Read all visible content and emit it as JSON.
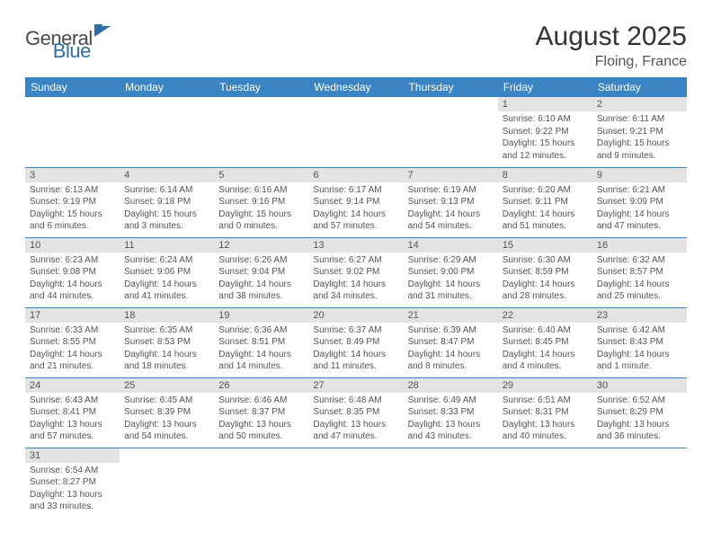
{
  "brand": {
    "part1": "General",
    "part2": "Blue"
  },
  "title": "August 2025",
  "location": "Floing, France",
  "colors": {
    "header_bg": "#3b84c4",
    "header_text": "#ffffff",
    "daynum_bg": "#e3e3e3",
    "body_text": "#555555",
    "row_divider": "#3b84c4",
    "brand_blue": "#2f6fa8",
    "brand_gray": "#4a4a4a"
  },
  "weekdays": [
    "Sunday",
    "Monday",
    "Tuesday",
    "Wednesday",
    "Thursday",
    "Friday",
    "Saturday"
  ],
  "weeks": [
    [
      null,
      null,
      null,
      null,
      null,
      {
        "n": "1",
        "sr": "Sunrise: 6:10 AM",
        "ss": "Sunset: 9:22 PM",
        "d1": "Daylight: 15 hours",
        "d2": "and 12 minutes."
      },
      {
        "n": "2",
        "sr": "Sunrise: 6:11 AM",
        "ss": "Sunset: 9:21 PM",
        "d1": "Daylight: 15 hours",
        "d2": "and 9 minutes."
      }
    ],
    [
      {
        "n": "3",
        "sr": "Sunrise: 6:13 AM",
        "ss": "Sunset: 9:19 PM",
        "d1": "Daylight: 15 hours",
        "d2": "and 6 minutes."
      },
      {
        "n": "4",
        "sr": "Sunrise: 6:14 AM",
        "ss": "Sunset: 9:18 PM",
        "d1": "Daylight: 15 hours",
        "d2": "and 3 minutes."
      },
      {
        "n": "5",
        "sr": "Sunrise: 6:16 AM",
        "ss": "Sunset: 9:16 PM",
        "d1": "Daylight: 15 hours",
        "d2": "and 0 minutes."
      },
      {
        "n": "6",
        "sr": "Sunrise: 6:17 AM",
        "ss": "Sunset: 9:14 PM",
        "d1": "Daylight: 14 hours",
        "d2": "and 57 minutes."
      },
      {
        "n": "7",
        "sr": "Sunrise: 6:19 AM",
        "ss": "Sunset: 9:13 PM",
        "d1": "Daylight: 14 hours",
        "d2": "and 54 minutes."
      },
      {
        "n": "8",
        "sr": "Sunrise: 6:20 AM",
        "ss": "Sunset: 9:11 PM",
        "d1": "Daylight: 14 hours",
        "d2": "and 51 minutes."
      },
      {
        "n": "9",
        "sr": "Sunrise: 6:21 AM",
        "ss": "Sunset: 9:09 PM",
        "d1": "Daylight: 14 hours",
        "d2": "and 47 minutes."
      }
    ],
    [
      {
        "n": "10",
        "sr": "Sunrise: 6:23 AM",
        "ss": "Sunset: 9:08 PM",
        "d1": "Daylight: 14 hours",
        "d2": "and 44 minutes."
      },
      {
        "n": "11",
        "sr": "Sunrise: 6:24 AM",
        "ss": "Sunset: 9:06 PM",
        "d1": "Daylight: 14 hours",
        "d2": "and 41 minutes."
      },
      {
        "n": "12",
        "sr": "Sunrise: 6:26 AM",
        "ss": "Sunset: 9:04 PM",
        "d1": "Daylight: 14 hours",
        "d2": "and 38 minutes."
      },
      {
        "n": "13",
        "sr": "Sunrise: 6:27 AM",
        "ss": "Sunset: 9:02 PM",
        "d1": "Daylight: 14 hours",
        "d2": "and 34 minutes."
      },
      {
        "n": "14",
        "sr": "Sunrise: 6:29 AM",
        "ss": "Sunset: 9:00 PM",
        "d1": "Daylight: 14 hours",
        "d2": "and 31 minutes."
      },
      {
        "n": "15",
        "sr": "Sunrise: 6:30 AM",
        "ss": "Sunset: 8:59 PM",
        "d1": "Daylight: 14 hours",
        "d2": "and 28 minutes."
      },
      {
        "n": "16",
        "sr": "Sunrise: 6:32 AM",
        "ss": "Sunset: 8:57 PM",
        "d1": "Daylight: 14 hours",
        "d2": "and 25 minutes."
      }
    ],
    [
      {
        "n": "17",
        "sr": "Sunrise: 6:33 AM",
        "ss": "Sunset: 8:55 PM",
        "d1": "Daylight: 14 hours",
        "d2": "and 21 minutes."
      },
      {
        "n": "18",
        "sr": "Sunrise: 6:35 AM",
        "ss": "Sunset: 8:53 PM",
        "d1": "Daylight: 14 hours",
        "d2": "and 18 minutes."
      },
      {
        "n": "19",
        "sr": "Sunrise: 6:36 AM",
        "ss": "Sunset: 8:51 PM",
        "d1": "Daylight: 14 hours",
        "d2": "and 14 minutes."
      },
      {
        "n": "20",
        "sr": "Sunrise: 6:37 AM",
        "ss": "Sunset: 8:49 PM",
        "d1": "Daylight: 14 hours",
        "d2": "and 11 minutes."
      },
      {
        "n": "21",
        "sr": "Sunrise: 6:39 AM",
        "ss": "Sunset: 8:47 PM",
        "d1": "Daylight: 14 hours",
        "d2": "and 8 minutes."
      },
      {
        "n": "22",
        "sr": "Sunrise: 6:40 AM",
        "ss": "Sunset: 8:45 PM",
        "d1": "Daylight: 14 hours",
        "d2": "and 4 minutes."
      },
      {
        "n": "23",
        "sr": "Sunrise: 6:42 AM",
        "ss": "Sunset: 8:43 PM",
        "d1": "Daylight: 14 hours",
        "d2": "and 1 minute."
      }
    ],
    [
      {
        "n": "24",
        "sr": "Sunrise: 6:43 AM",
        "ss": "Sunset: 8:41 PM",
        "d1": "Daylight: 13 hours",
        "d2": "and 57 minutes."
      },
      {
        "n": "25",
        "sr": "Sunrise: 6:45 AM",
        "ss": "Sunset: 8:39 PM",
        "d1": "Daylight: 13 hours",
        "d2": "and 54 minutes."
      },
      {
        "n": "26",
        "sr": "Sunrise: 6:46 AM",
        "ss": "Sunset: 8:37 PM",
        "d1": "Daylight: 13 hours",
        "d2": "and 50 minutes."
      },
      {
        "n": "27",
        "sr": "Sunrise: 6:48 AM",
        "ss": "Sunset: 8:35 PM",
        "d1": "Daylight: 13 hours",
        "d2": "and 47 minutes."
      },
      {
        "n": "28",
        "sr": "Sunrise: 6:49 AM",
        "ss": "Sunset: 8:33 PM",
        "d1": "Daylight: 13 hours",
        "d2": "and 43 minutes."
      },
      {
        "n": "29",
        "sr": "Sunrise: 6:51 AM",
        "ss": "Sunset: 8:31 PM",
        "d1": "Daylight: 13 hours",
        "d2": "and 40 minutes."
      },
      {
        "n": "30",
        "sr": "Sunrise: 6:52 AM",
        "ss": "Sunset: 8:29 PM",
        "d1": "Daylight: 13 hours",
        "d2": "and 36 minutes."
      }
    ],
    [
      {
        "n": "31",
        "sr": "Sunrise: 6:54 AM",
        "ss": "Sunset: 8:27 PM",
        "d1": "Daylight: 13 hours",
        "d2": "and 33 minutes."
      },
      null,
      null,
      null,
      null,
      null,
      null
    ]
  ]
}
